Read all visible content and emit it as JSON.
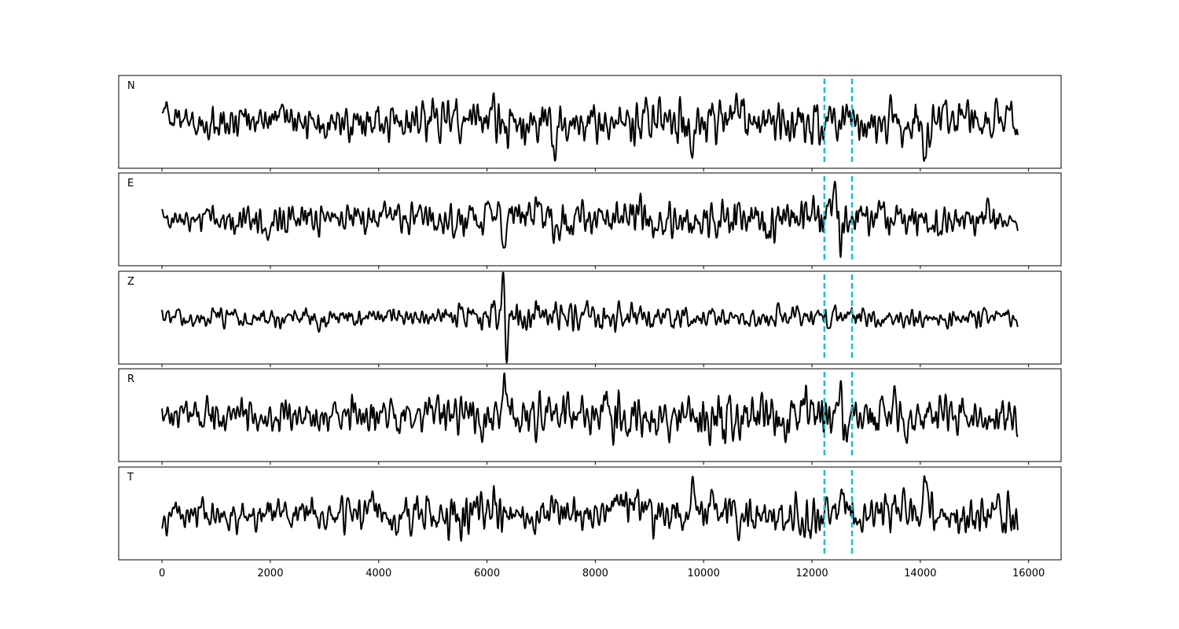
{
  "chart_data": {
    "type": "line",
    "title": "",
    "xlabel": "",
    "ylabel": "",
    "xlim": [
      -800,
      16600
    ],
    "x_ticks": [
      0,
      2000,
      4000,
      6000,
      8000,
      10000,
      12000,
      14000,
      16000
    ],
    "x_tick_labels": [
      "0",
      "2000",
      "4000",
      "6000",
      "8000",
      "10000",
      "12000",
      "14000",
      "16000"
    ],
    "x_range": [
      0,
      15800
    ],
    "grid": false,
    "shared_x_axis": true,
    "markers": {
      "x": [
        12230,
        12740
      ],
      "color": "#17becf",
      "style": "dashed"
    },
    "trace_color": "#000000",
    "panels": [
      {
        "label": "N",
        "events": [
          {
            "x": 60,
            "amp": 0.45,
            "w": 60
          },
          {
            "x": 9780,
            "amp": -1.2,
            "w": 40
          },
          {
            "x": 7270,
            "amp": -0.7,
            "w": 40
          },
          {
            "x": 14100,
            "amp": -0.9,
            "w": 50
          },
          {
            "x": 10650,
            "amp": 0.65,
            "w": 60
          }
        ],
        "noise": [
          0.35,
          0.55,
          0.55,
          0.45,
          0.6,
          0.75,
          0.7,
          0.65,
          0.6,
          0.7,
          0.8,
          0.6,
          0.75,
          0.65,
          0.7,
          0.6,
          0.55
        ]
      },
      {
        "label": "E",
        "events": [
          {
            "x": 6300,
            "amp": -0.9,
            "w": 50
          },
          {
            "x": 12450,
            "amp": 0.9,
            "w": 60
          },
          {
            "x": 12510,
            "amp": -1.0,
            "w": 50
          }
        ],
        "noise": [
          0.4,
          0.5,
          0.55,
          0.55,
          0.55,
          0.55,
          0.6,
          0.75,
          0.7,
          0.7,
          0.65,
          0.7,
          0.7,
          0.75,
          0.65,
          0.55,
          0.45
        ]
      },
      {
        "label": "Z",
        "events": [
          {
            "x": 6310,
            "amp": 1.2,
            "w": 45
          },
          {
            "x": 6360,
            "amp": -1.3,
            "w": 40
          }
        ],
        "noise": [
          0.25,
          0.3,
          0.3,
          0.35,
          0.3,
          0.3,
          0.45,
          0.55,
          0.5,
          0.45,
          0.35,
          0.35,
          0.35,
          0.35,
          0.35,
          0.35,
          0.3
        ]
      },
      {
        "label": "R",
        "events": [
          {
            "x": 6330,
            "amp": 1.2,
            "w": 45
          },
          {
            "x": 12540,
            "amp": 1.1,
            "w": 60
          },
          {
            "x": 12600,
            "amp": -0.9,
            "w": 50
          },
          {
            "x": 10680,
            "amp": -0.7,
            "w": 50
          }
        ],
        "noise": [
          0.45,
          0.55,
          0.55,
          0.55,
          0.55,
          0.55,
          0.65,
          0.75,
          0.75,
          0.75,
          0.75,
          0.75,
          0.75,
          0.75,
          0.7,
          0.6,
          0.55
        ]
      },
      {
        "label": "T",
        "events": [
          {
            "x": 60,
            "amp": -0.45,
            "w": 60
          },
          {
            "x": 9780,
            "amp": 1.2,
            "w": 40
          },
          {
            "x": 7270,
            "amp": 0.7,
            "w": 40
          },
          {
            "x": 14100,
            "amp": 0.9,
            "w": 50
          },
          {
            "x": 10650,
            "amp": -0.8,
            "w": 60
          }
        ],
        "noise": [
          0.35,
          0.55,
          0.55,
          0.45,
          0.6,
          0.75,
          0.7,
          0.65,
          0.6,
          0.7,
          0.8,
          0.6,
          0.75,
          0.65,
          0.7,
          0.6,
          0.55
        ]
      }
    ]
  }
}
